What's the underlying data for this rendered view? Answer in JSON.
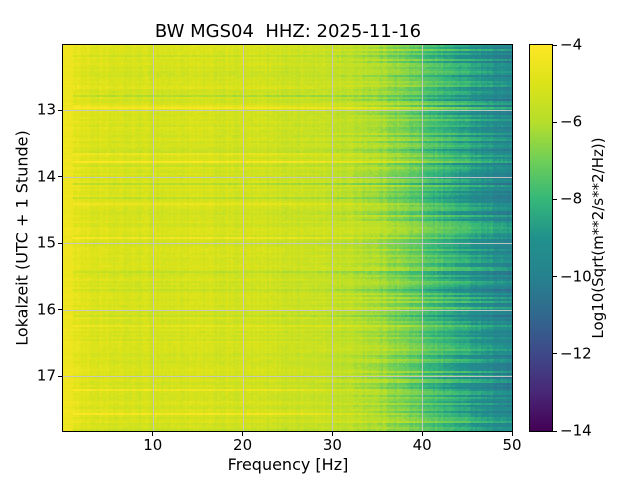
{
  "chart_data": {
    "type": "heatmap",
    "title": "BW MGS04  HHZ: 2025-11-16",
    "xlabel": "Frequency [Hz]",
    "ylabel": "Lokalzeit (UTC + 1 Stunde)",
    "x_range": [
      0,
      50
    ],
    "x_ticks": [
      10,
      20,
      30,
      40,
      50
    ],
    "x_tick_labels": [
      "10",
      "20",
      "30",
      "40",
      "50"
    ],
    "y_range_hours": [
      12.02,
      17.82
    ],
    "y_ticks": [
      13,
      14,
      15,
      16,
      17
    ],
    "y_tick_labels": [
      "13",
      "14",
      "15",
      "16",
      "17"
    ],
    "grid": true,
    "grid_color": "#c6c6c6",
    "colorbar": {
      "label": "Log10(Sqrt(m**2/s**2/Hz))",
      "range": [
        -14,
        -4
      ],
      "ticks": [
        -4,
        -6,
        -8,
        -10,
        -12,
        -14
      ],
      "tick_labels": [
        "−4",
        "−6",
        "−8",
        "−10",
        "−12",
        "−14"
      ],
      "colormap": "viridis"
    },
    "colormap_stops": [
      [
        0.0,
        "#440154"
      ],
      [
        0.1,
        "#482878"
      ],
      [
        0.2,
        "#3e4989"
      ],
      [
        0.3,
        "#31688e"
      ],
      [
        0.4,
        "#26828e"
      ],
      [
        0.5,
        "#21918c"
      ],
      [
        0.6,
        "#35b779"
      ],
      [
        0.7,
        "#6ece58"
      ],
      [
        0.8,
        "#b5de2b"
      ],
      [
        0.9,
        "#dce319"
      ],
      [
        1.0,
        "#fde725"
      ]
    ],
    "freq_profile": {
      "freqs_hz": [
        0,
        0.8,
        1.5,
        3,
        6,
        10,
        14,
        18,
        22,
        26,
        30,
        33,
        36,
        39,
        42,
        45,
        48,
        50
      ],
      "log10_amp": [
        -4.45,
        -4.45,
        -4.7,
        -5.0,
        -5.15,
        -5.2,
        -5.15,
        -5.25,
        -5.3,
        -5.45,
        -5.6,
        -5.85,
        -6.3,
        -7.0,
        -7.8,
        -8.5,
        -9.2,
        -9.6
      ]
    },
    "texture": {
      "row_noise": 0.22,
      "cell_noise": 0.34,
      "col_noise": 0.22,
      "bright_row_prob": 0.045,
      "bright_row_boost": [
        0.45,
        0.95
      ],
      "dark_row_prob": 0.055,
      "dark_row_amp": [
        0.35,
        0.8
      ],
      "highfreq_row_var": 1.0
    }
  }
}
